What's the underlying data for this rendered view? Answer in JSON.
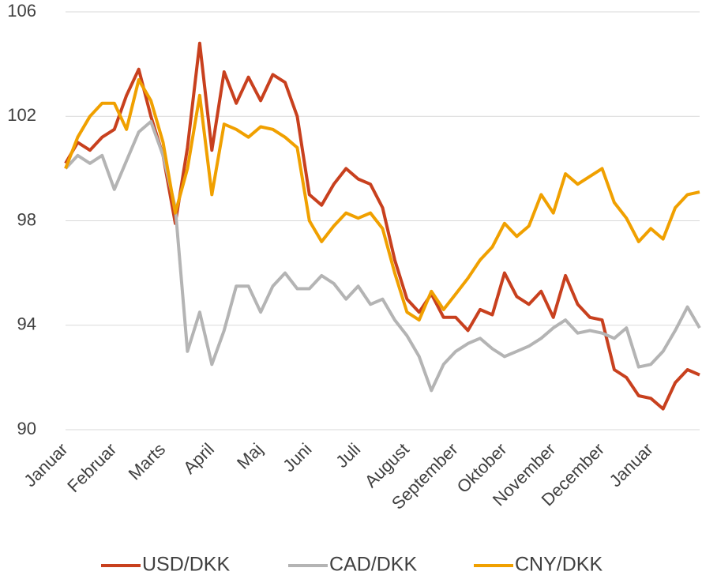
{
  "chart_data": {
    "type": "line",
    "categories": [
      "Januar",
      null,
      null,
      null,
      "Februar",
      null,
      null,
      null,
      "Marts",
      null,
      null,
      null,
      "April",
      null,
      null,
      null,
      "Maj",
      null,
      null,
      null,
      "Juni",
      null,
      null,
      null,
      "Juli",
      null,
      null,
      null,
      "August",
      null,
      null,
      null,
      "September",
      null,
      null,
      null,
      "Oktober",
      null,
      null,
      null,
      "November",
      null,
      null,
      null,
      "December",
      null,
      null,
      null,
      "Januar",
      null,
      null,
      null,
      null
    ],
    "series": [
      {
        "name": "USD/DKK",
        "color": "#c8401e",
        "values": [
          100.2,
          101,
          100.7,
          101.2,
          101.5,
          102.8,
          103.8,
          102,
          100.5,
          97.9,
          100.8,
          104.8,
          100.7,
          103.7,
          102.5,
          103.5,
          102.6,
          103.6,
          103.3,
          102,
          99,
          98.6,
          99.4,
          100,
          99.6,
          99.4,
          98.5,
          96.5,
          95,
          94.5,
          95.2,
          94.3,
          94.3,
          93.8,
          94.6,
          94.4,
          96,
          95.1,
          94.8,
          95.3,
          94.3,
          95.9,
          94.8,
          94.3,
          94.2,
          92.3,
          92,
          91.3,
          91.2,
          90.8,
          91.8,
          92.3,
          92.1
        ]
      },
      {
        "name": "CAD/DKK",
        "color": "#b4b4b4",
        "values": [
          100,
          100.5,
          100.2,
          100.5,
          99.2,
          100.3,
          101.4,
          101.8,
          100.5,
          98.5,
          93,
          94.5,
          92.5,
          93.8,
          95.5,
          95.5,
          94.5,
          95.5,
          96,
          95.4,
          95.4,
          95.9,
          95.6,
          95,
          95.5,
          94.8,
          95,
          94.2,
          93.6,
          92.8,
          91.5,
          92.5,
          93,
          93.3,
          93.5,
          93.1,
          92.8,
          93,
          93.2,
          93.5,
          93.9,
          94.2,
          93.7,
          93.8,
          93.7,
          93.5,
          93.9,
          92.4,
          92.5,
          93,
          93.8,
          94.7,
          93.9
        ]
      },
      {
        "name": "CNY/DKK",
        "color": "#f0a000",
        "values": [
          100,
          101.2,
          102,
          102.5,
          102.5,
          101.5,
          103.4,
          102.6,
          101,
          98.3,
          100,
          102.8,
          99,
          101.7,
          101.5,
          101.2,
          101.6,
          101.5,
          101.2,
          100.8,
          98,
          97.2,
          97.8,
          98.3,
          98.1,
          98.3,
          97.7,
          96,
          94.5,
          94.2,
          95.3,
          94.6,
          95.2,
          95.8,
          96.5,
          97,
          97.9,
          97.4,
          97.8,
          99,
          98.3,
          99.8,
          99.4,
          99.7,
          100,
          98.7,
          98.1,
          97.2,
          97.7,
          97.3,
          98.5,
          99,
          99.1
        ]
      }
    ],
    "ylim": [
      90,
      106
    ],
    "yticks": [
      90,
      94,
      98,
      102,
      106
    ],
    "grid": true,
    "legend": "bottom"
  }
}
